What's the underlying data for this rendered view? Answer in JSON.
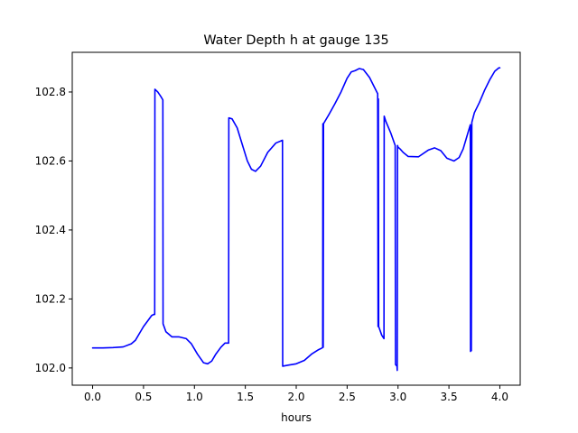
{
  "chart_data": {
    "type": "line",
    "title": "Water Depth h at gauge 135",
    "xlabel": "hours",
    "ylabel": "",
    "xlim": [
      -0.2,
      4.2
    ],
    "ylim": [
      101.95,
      102.915
    ],
    "xticks": [
      0.0,
      0.5,
      1.0,
      1.5,
      2.0,
      2.5,
      3.0,
      3.5,
      4.0
    ],
    "xtick_labels": [
      "0.0",
      "0.5",
      "1.0",
      "1.5",
      "2.0",
      "2.5",
      "3.0",
      "3.5",
      "4.0"
    ],
    "yticks": [
      102.0,
      102.2,
      102.4,
      102.6,
      102.8
    ],
    "ytick_labels": [
      "102.0",
      "102.2",
      "102.4",
      "102.6",
      "102.8"
    ],
    "grid": false,
    "legend": "none",
    "series": [
      {
        "color": "#0000ff",
        "x": [
          0.0,
          0.1,
          0.2,
          0.3,
          0.38,
          0.42,
          0.46,
          0.5,
          0.55,
          0.58,
          0.6,
          0.61,
          0.612,
          0.64,
          0.67,
          0.69,
          0.692,
          0.72,
          0.78,
          0.85,
          0.92,
          0.97,
          1.03,
          1.09,
          1.13,
          1.17,
          1.21,
          1.26,
          1.3,
          1.336,
          1.338,
          1.37,
          1.42,
          1.47,
          1.52,
          1.56,
          1.6,
          1.65,
          1.72,
          1.8,
          1.865,
          1.867,
          1.92,
          2.0,
          2.08,
          2.15,
          2.22,
          2.255,
          2.26,
          2.262,
          2.265,
          2.268,
          2.272,
          2.32,
          2.38,
          2.44,
          2.5,
          2.54,
          2.58,
          2.62,
          2.66,
          2.72,
          2.8,
          2.804,
          2.807,
          2.81,
          2.84,
          2.862,
          2.864,
          2.88,
          2.93,
          2.972,
          2.975,
          2.99,
          2.992,
          2.995,
          3.0,
          3.02,
          3.05,
          3.1,
          3.2,
          3.3,
          3.36,
          3.42,
          3.48,
          3.55,
          3.6,
          3.64,
          3.67,
          3.71,
          3.712,
          3.718,
          3.72,
          3.725,
          3.75,
          3.8,
          3.85,
          3.9,
          3.95,
          3.99,
          4.0
        ],
        "y": [
          102.058,
          102.058,
          102.059,
          102.061,
          102.07,
          102.08,
          102.1,
          102.12,
          102.14,
          102.152,
          102.155,
          102.155,
          102.808,
          102.8,
          102.787,
          102.777,
          102.128,
          102.105,
          102.09,
          102.09,
          102.085,
          102.07,
          102.04,
          102.015,
          102.012,
          102.02,
          102.04,
          102.06,
          102.072,
          102.072,
          102.725,
          102.722,
          102.696,
          102.648,
          102.6,
          102.576,
          102.57,
          102.585,
          102.625,
          102.652,
          102.66,
          102.005,
          102.008,
          102.012,
          102.022,
          102.04,
          102.053,
          102.058,
          102.06,
          102.708,
          102.06,
          102.708,
          102.71,
          102.734,
          102.766,
          102.8,
          102.84,
          102.858,
          102.862,
          102.868,
          102.865,
          102.842,
          102.795,
          102.12,
          102.78,
          102.12,
          102.095,
          102.085,
          102.73,
          102.715,
          102.68,
          102.645,
          102.01,
          102.005,
          101.993,
          102.645,
          102.64,
          102.635,
          102.625,
          102.613,
          102.612,
          102.632,
          102.638,
          102.63,
          102.608,
          102.6,
          102.61,
          102.635,
          102.665,
          102.705,
          102.048,
          102.7,
          102.05,
          102.712,
          102.74,
          102.77,
          102.805,
          102.835,
          102.86,
          102.87,
          102.87
        ]
      }
    ]
  }
}
